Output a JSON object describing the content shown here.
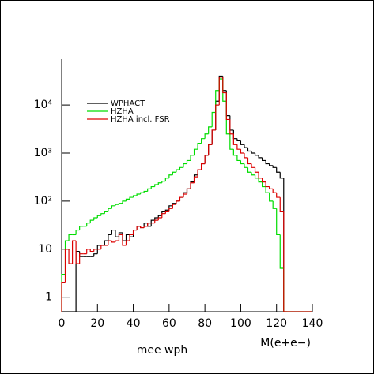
{
  "chart_data": {
    "type": "histogram",
    "log_y": true,
    "legend": "upper left",
    "title": "mee wph",
    "xlabel": "M(e+e−)",
    "bins": [
      0,
      2,
      4,
      6,
      8,
      10,
      12,
      14,
      16,
      18,
      20,
      22,
      24,
      26,
      28,
      30,
      32,
      34,
      36,
      38,
      40,
      42,
      44,
      46,
      48,
      50,
      52,
      54,
      56,
      58,
      60,
      62,
      64,
      66,
      68,
      70,
      72,
      74,
      76,
      78,
      80,
      82,
      84,
      86,
      88,
      90,
      92,
      94,
      96,
      98,
      100,
      102,
      104,
      106,
      108,
      110,
      112,
      114,
      116,
      118,
      120,
      122,
      124,
      126,
      128,
      130,
      132,
      134,
      136,
      138,
      140
    ],
    "xlim": [
      0,
      140
    ],
    "xticks": [
      0,
      20,
      40,
      60,
      80,
      100,
      120,
      140
    ],
    "ylim": [
      0.5,
      90000
    ],
    "yticks": [
      1,
      10,
      {
        "value": 100,
        "label": "10²"
      },
      {
        "value": 1000,
        "label": "10³"
      },
      {
        "value": 10000,
        "label": "10⁴"
      }
    ],
    "series": [
      {
        "name": "WPHACT",
        "color": "#000000",
        "values": [
          null,
          null,
          null,
          null,
          9,
          7,
          7,
          7,
          7,
          8,
          12,
          12,
          15,
          20,
          25,
          18,
          22,
          15,
          20,
          18,
          25,
          30,
          28,
          35,
          30,
          40,
          45,
          50,
          60,
          65,
          80,
          90,
          100,
          120,
          150,
          180,
          250,
          350,
          450,
          600,
          900,
          1500,
          3000,
          12000,
          40000,
          20000,
          6000,
          3000,
          2000,
          1800,
          1500,
          1300,
          1100,
          1000,
          900,
          800,
          700,
          600,
          550,
          500,
          400,
          300,
          null,
          null,
          null,
          null,
          null,
          null,
          null,
          null
        ]
      },
      {
        "name": "HZHA",
        "color": "#00dd00",
        "values": [
          3,
          15,
          20,
          20,
          25,
          30,
          30,
          35,
          40,
          45,
          50,
          55,
          60,
          70,
          80,
          85,
          90,
          100,
          110,
          120,
          130,
          140,
          150,
          160,
          180,
          200,
          220,
          240,
          260,
          300,
          350,
          400,
          450,
          500,
          600,
          700,
          900,
          1200,
          1600,
          2000,
          2500,
          3500,
          7000,
          20000,
          35000,
          12000,
          2500,
          1200,
          900,
          700,
          600,
          500,
          400,
          350,
          300,
          250,
          200,
          150,
          100,
          70,
          20,
          4,
          null,
          null,
          null,
          null,
          null,
          null,
          null,
          null
        ]
      },
      {
        "name": "HZHA incl. FSR",
        "color": "#dd0000",
        "values": [
          2,
          10,
          5,
          15,
          5,
          8,
          8,
          10,
          9,
          10,
          10,
          12,
          12,
          15,
          14,
          15,
          20,
          12,
          15,
          20,
          25,
          30,
          28,
          30,
          35,
          35,
          40,
          45,
          55,
          60,
          70,
          85,
          100,
          120,
          140,
          180,
          240,
          320,
          450,
          600,
          900,
          1500,
          3000,
          10000,
          38000,
          18000,
          5000,
          2500,
          1500,
          1200,
          1000,
          800,
          600,
          500,
          400,
          300,
          250,
          200,
          180,
          150,
          120,
          60,
          null,
          null,
          null,
          null,
          null,
          null,
          null,
          null
        ]
      }
    ]
  }
}
